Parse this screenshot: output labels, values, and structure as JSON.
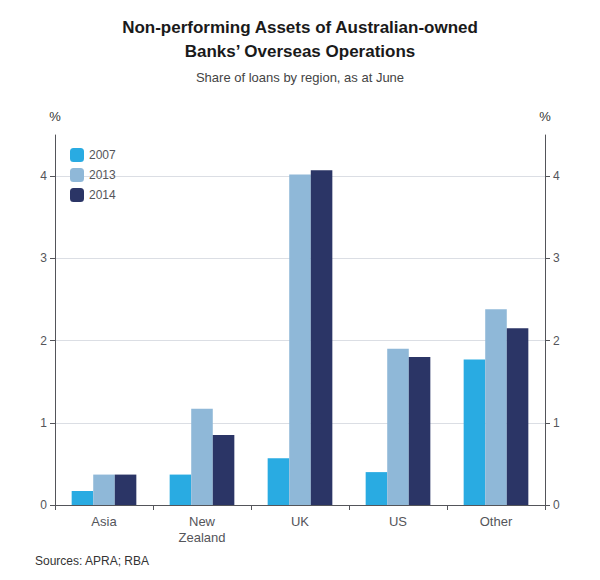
{
  "chart_data": {
    "type": "bar",
    "title": "Non-performing Assets of Australian-owned\nBanks’ Overseas Operations",
    "subtitle": "Share of loans by region, as at June",
    "source": "Sources: APRA; RBA",
    "ylabel": "%",
    "y2label": "%",
    "categories": [
      "Asia",
      "New\nZealand",
      "UK",
      "US",
      "Other"
    ],
    "series": [
      {
        "name": "2007",
        "color": "#29ABE2",
        "values": [
          0.17,
          0.37,
          0.57,
          0.4,
          1.77
        ]
      },
      {
        "name": "2013",
        "color": "#8FB8D8",
        "values": [
          0.37,
          1.17,
          4.02,
          1.9,
          2.38
        ]
      },
      {
        "name": "2014",
        "color": "#2B3566",
        "values": [
          0.37,
          0.85,
          4.07,
          1.8,
          2.15
        ]
      }
    ],
    "ylim": [
      0,
      4.5
    ],
    "yticks": [
      0,
      1,
      2,
      3,
      4
    ],
    "y2lim": [
      0,
      4.5
    ],
    "y2ticks": [
      0,
      1,
      2,
      3,
      4
    ],
    "grid": true,
    "legend": "upper left"
  }
}
